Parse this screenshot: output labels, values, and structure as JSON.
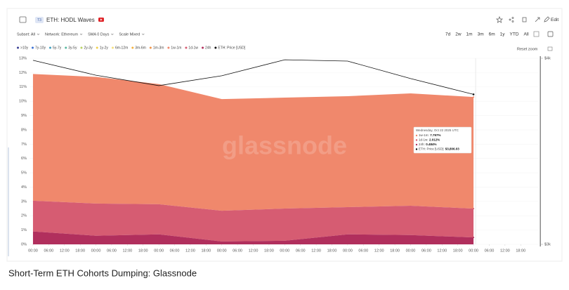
{
  "ui": {
    "badge": "T3",
    "title": "ETH: HODL Waves",
    "edit": "Edit",
    "filters": [
      "Subset: All",
      "Network: Ethereum",
      "SMA 0 Days",
      "Scale Mixed"
    ],
    "ranges": [
      "7d",
      "2w",
      "1m",
      "3m",
      "6m",
      "1y",
      "YTD",
      "All"
    ],
    "reset_zoom": "Reset zoom",
    "watermark": "glassnode",
    "caption": "Short-Term ETH Cohorts Dumping: Glassnode"
  },
  "chart_data": {
    "type": "stacked-area",
    "xlim": [
      -2.4,
      193.7
    ],
    "xticks": [
      {
        "value": 0,
        "label": "00:00"
      },
      {
        "value": 6,
        "label": "06:00"
      },
      {
        "value": 12,
        "label": "12:00"
      },
      {
        "value": 18,
        "label": "18:00"
      },
      {
        "value": 24,
        "label": "00:00"
      },
      {
        "value": 30,
        "label": "06:00"
      },
      {
        "value": 36,
        "label": "12:00"
      },
      {
        "value": 42,
        "label": "18:00"
      },
      {
        "value": 48,
        "label": "00:00"
      },
      {
        "value": 54,
        "label": "06:00"
      },
      {
        "value": 60,
        "label": "12:00"
      },
      {
        "value": 66,
        "label": "18:00"
      },
      {
        "value": 72,
        "label": "00:00"
      },
      {
        "value": 78,
        "label": "06:00"
      },
      {
        "value": 84,
        "label": "12:00"
      },
      {
        "value": 90,
        "label": "18:00"
      },
      {
        "value": 96,
        "label": "00:00"
      },
      {
        "value": 102,
        "label": "06:00"
      },
      {
        "value": 108,
        "label": "12:00"
      },
      {
        "value": 114,
        "label": "18:00"
      },
      {
        "value": 120,
        "label": "00:00"
      },
      {
        "value": 126,
        "label": "06:00"
      },
      {
        "value": 132,
        "label": "12:00"
      },
      {
        "value": 138,
        "label": "18:00"
      },
      {
        "value": 144,
        "label": "00:00"
      },
      {
        "value": 150,
        "label": "06:00"
      },
      {
        "value": 156,
        "label": "12:00"
      },
      {
        "value": 162,
        "label": "18:00"
      },
      {
        "value": 168,
        "label": "00:00"
      },
      {
        "value": 174,
        "label": "06:00"
      },
      {
        "value": 180,
        "label": "12:00"
      },
      {
        "value": 186,
        "label": "18:00"
      }
    ],
    "ylim": [
      0,
      13
    ],
    "yticks": [
      {
        "value": 0,
        "label": "0%"
      },
      {
        "value": 1,
        "label": "1%"
      },
      {
        "value": 2,
        "label": "2%"
      },
      {
        "value": 3,
        "label": "3%"
      },
      {
        "value": 4,
        "label": "4%"
      },
      {
        "value": 5,
        "label": "5%"
      },
      {
        "value": 6,
        "label": "6%"
      },
      {
        "value": 7,
        "label": "7%"
      },
      {
        "value": 8,
        "label": "8%"
      },
      {
        "value": 9,
        "label": "9%"
      },
      {
        "value": 10,
        "label": "10%"
      },
      {
        "value": 11,
        "label": "11%"
      },
      {
        "value": 12,
        "label": "12%"
      },
      {
        "value": 13,
        "label": "13%"
      }
    ],
    "y2lim": [
      3000,
      4000
    ],
    "y2ticks": [
      {
        "value": 3000,
        "label": "$3k"
      },
      {
        "value": 4000,
        "label": "$4k"
      }
    ],
    "grid": true,
    "x": [
      0,
      24,
      48,
      72,
      96,
      120,
      144,
      168
    ],
    "series": [
      {
        "name": ">10y",
        "color": "#3a3f94"
      },
      {
        "name": "7y-10y",
        "color": "#3d72d4"
      },
      {
        "name": "5y-7y",
        "color": "#3f9fc0"
      },
      {
        "name": "3y-5y",
        "color": "#58b89f"
      },
      {
        "name": "2y-3y",
        "color": "#b9d264"
      },
      {
        "name": "1y-2y",
        "color": "#f0cf4a"
      },
      {
        "name": "6m-12m",
        "color": "#f6e07e"
      },
      {
        "name": "3m-6m",
        "color": "#f4b23f"
      },
      {
        "name": "1m-3m",
        "color": "#f09448"
      },
      {
        "name": "1w-1m",
        "color": "#f0886c",
        "values": [
          8.85,
          8.85,
          8.4,
          7.8,
          7.75,
          7.75,
          7.85,
          7.797
        ]
      },
      {
        "name": "1d-1w",
        "color": "#d65c72",
        "values": [
          2.15,
          2.25,
          2.1,
          2.15,
          2.25,
          1.9,
          2.05,
          2.012
        ]
      },
      {
        "name": "24h",
        "color": "#b12f5d",
        "values": [
          0.9,
          0.6,
          0.7,
          0.2,
          0.25,
          0.7,
          0.65,
          0.484
        ]
      },
      {
        "name": "ETH: Price [USD]",
        "color": "#111111",
        "axis": "y2",
        "values": [
          3989,
          3909,
          3853,
          3906,
          3992,
          3985,
          3891,
          3806.03
        ]
      }
    ],
    "tooltip": {
      "title": "Wednesday, Oct 22 2025 UTC",
      "items": [
        {
          "name": "1w-1m:",
          "value": "7.797%",
          "color": "#f0886c"
        },
        {
          "name": "1d-1w:",
          "value": "2.012%",
          "color": "#d65c72"
        },
        {
          "name": "24h:",
          "value": "0.484%",
          "color": "#b12f5d"
        },
        {
          "name": "ETH: Price [USD]:",
          "value": "$3,806.03",
          "color": "#111111"
        }
      ]
    }
  }
}
